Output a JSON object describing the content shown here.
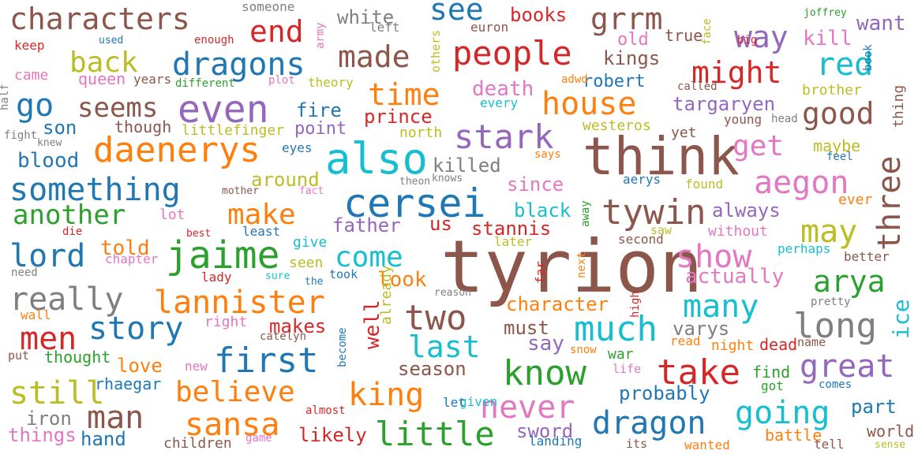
{
  "palette": {
    "blue": "#1f77b4",
    "orange": "#ff7f0e",
    "green": "#2ca02c",
    "red": "#d62728",
    "purple": "#9467bd",
    "brown": "#8c564b",
    "pink": "#e377c2",
    "gray": "#7f7f7f",
    "olive": "#bcbd22",
    "cyan": "#17becf"
  },
  "words": [
    {
      "text": "tyrion",
      "color": "brown"
    },
    {
      "text": "think",
      "color": "brown"
    },
    {
      "text": "also",
      "color": "cyan"
    },
    {
      "text": "cersei",
      "color": "blue"
    },
    {
      "text": "jaime",
      "color": "green"
    },
    {
      "text": "even",
      "color": "purple"
    },
    {
      "text": "daenerys",
      "color": "orange"
    },
    {
      "text": "something",
      "color": "blue"
    },
    {
      "text": "dragons",
      "color": "blue"
    },
    {
      "text": "characters",
      "color": "brown"
    },
    {
      "text": "people",
      "color": "red"
    },
    {
      "text": "lannister",
      "color": "orange"
    },
    {
      "text": "first",
      "color": "blue"
    },
    {
      "text": "know",
      "color": "green"
    },
    {
      "text": "stark",
      "color": "purple"
    },
    {
      "text": "house",
      "color": "orange"
    },
    {
      "text": "might",
      "color": "red"
    },
    {
      "text": "three",
      "color": "brown"
    },
    {
      "text": "way",
      "color": "purple"
    },
    {
      "text": "grrm",
      "color": "brown"
    },
    {
      "text": "see",
      "color": "blue"
    },
    {
      "text": "made",
      "color": "brown"
    },
    {
      "text": "end",
      "color": "red"
    },
    {
      "text": "back",
      "color": "olive"
    },
    {
      "text": "red",
      "color": "cyan"
    },
    {
      "text": "go",
      "color": "blue"
    },
    {
      "text": "seems",
      "color": "brown"
    },
    {
      "text": "time",
      "color": "orange"
    },
    {
      "text": "good",
      "color": "brown"
    },
    {
      "text": "get",
      "color": "pink"
    },
    {
      "text": "aegon",
      "color": "pink"
    },
    {
      "text": "another",
      "color": "green"
    },
    {
      "text": "make",
      "color": "orange"
    },
    {
      "text": "tywin",
      "color": "brown"
    },
    {
      "text": "lord",
      "color": "blue"
    },
    {
      "text": "come",
      "color": "cyan"
    },
    {
      "text": "show",
      "color": "pink"
    },
    {
      "text": "may",
      "color": "olive"
    },
    {
      "text": "arya",
      "color": "green"
    },
    {
      "text": "really",
      "color": "gray"
    },
    {
      "text": "many",
      "color": "cyan"
    },
    {
      "text": "long",
      "color": "gray"
    },
    {
      "text": "story",
      "color": "blue"
    },
    {
      "text": "men",
      "color": "red"
    },
    {
      "text": "two",
      "color": "brown"
    },
    {
      "text": "much",
      "color": "cyan"
    },
    {
      "text": "last",
      "color": "cyan"
    },
    {
      "text": "take",
      "color": "red"
    },
    {
      "text": "great",
      "color": "purple"
    },
    {
      "text": "still",
      "color": "olive"
    },
    {
      "text": "man",
      "color": "brown"
    },
    {
      "text": "believe",
      "color": "orange"
    },
    {
      "text": "king",
      "color": "orange"
    },
    {
      "text": "never",
      "color": "pink"
    },
    {
      "text": "going",
      "color": "cyan"
    },
    {
      "text": "sansa",
      "color": "orange"
    },
    {
      "text": "little",
      "color": "green"
    },
    {
      "text": "dragon",
      "color": "blue"
    },
    {
      "text": "ice",
      "color": "cyan"
    },
    {
      "text": "white",
      "color": "gray"
    },
    {
      "text": "books",
      "color": "red"
    },
    {
      "text": "kings",
      "color": "brown"
    },
    {
      "text": "old",
      "color": "pink"
    },
    {
      "text": "kill",
      "color": "pink"
    },
    {
      "text": "want",
      "color": "purple"
    },
    {
      "text": "robert",
      "color": "blue"
    },
    {
      "text": "death",
      "color": "pink"
    },
    {
      "text": "fire",
      "color": "blue"
    },
    {
      "text": "prince",
      "color": "red"
    },
    {
      "text": "targaryen",
      "color": "purple"
    },
    {
      "text": "son",
      "color": "blue"
    },
    {
      "text": "point",
      "color": "purple"
    },
    {
      "text": "though",
      "color": "brown"
    },
    {
      "text": "westeros",
      "color": "olive"
    },
    {
      "text": "brother",
      "color": "olive"
    },
    {
      "text": "blood",
      "color": "blue"
    },
    {
      "text": "killed",
      "color": "gray"
    },
    {
      "text": "maybe",
      "color": "olive"
    },
    {
      "text": "around",
      "color": "olive"
    },
    {
      "text": "since",
      "color": "pink"
    },
    {
      "text": "black",
      "color": "cyan"
    },
    {
      "text": "always",
      "color": "purple"
    },
    {
      "text": "father",
      "color": "purple"
    },
    {
      "text": "us",
      "color": "red"
    },
    {
      "text": "stannis",
      "color": "red"
    },
    {
      "text": "told",
      "color": "orange"
    },
    {
      "text": "actually",
      "color": "pink"
    },
    {
      "text": "look",
      "color": "orange"
    },
    {
      "text": "character",
      "color": "orange"
    },
    {
      "text": "must",
      "color": "brown"
    },
    {
      "text": "varys",
      "color": "gray"
    },
    {
      "text": "well",
      "color": "red"
    },
    {
      "text": "say",
      "color": "purple"
    },
    {
      "text": "makes",
      "color": "red"
    },
    {
      "text": "season",
      "color": "brown"
    },
    {
      "text": "love",
      "color": "orange"
    },
    {
      "text": "thought",
      "color": "green"
    },
    {
      "text": "probably",
      "color": "blue"
    },
    {
      "text": "part",
      "color": "blue"
    },
    {
      "text": "find",
      "color": "green"
    },
    {
      "text": "night",
      "color": "orange"
    },
    {
      "text": "dead",
      "color": "red"
    },
    {
      "text": "iron",
      "color": "gray"
    },
    {
      "text": "things",
      "color": "pink"
    },
    {
      "text": "hand",
      "color": "blue"
    },
    {
      "text": "likely",
      "color": "red"
    },
    {
      "text": "sword",
      "color": "purple"
    },
    {
      "text": "battle",
      "color": "orange"
    },
    {
      "text": "world",
      "color": "brown"
    },
    {
      "text": "rhaegar",
      "color": "blue"
    },
    {
      "text": "children",
      "color": "brown"
    },
    {
      "text": "someone",
      "color": "gray"
    },
    {
      "text": "joffrey",
      "color": "green"
    },
    {
      "text": "keep",
      "color": "red"
    },
    {
      "text": "used",
      "color": "blue"
    },
    {
      "text": "enough",
      "color": "red"
    },
    {
      "text": "army",
      "color": "pink"
    },
    {
      "text": "left",
      "color": "gray"
    },
    {
      "text": "euron",
      "color": "brown"
    },
    {
      "text": "face",
      "color": "olive"
    },
    {
      "text": "big",
      "color": "red"
    },
    {
      "text": "book",
      "color": "blue"
    },
    {
      "text": "true",
      "color": "brown"
    },
    {
      "text": "came",
      "color": "pink"
    },
    {
      "text": "queen",
      "color": "pink"
    },
    {
      "text": "years",
      "color": "brown"
    },
    {
      "text": "different",
      "color": "green"
    },
    {
      "text": "plot",
      "color": "pink"
    },
    {
      "text": "theory",
      "color": "olive"
    },
    {
      "text": "others",
      "color": "olive"
    },
    {
      "text": "adwd",
      "color": "orange"
    },
    {
      "text": "called",
      "color": "brown"
    },
    {
      "text": "half",
      "color": "gray"
    },
    {
      "text": "every",
      "color": "cyan"
    },
    {
      "text": "north",
      "color": "olive"
    },
    {
      "text": "thing",
      "color": "brown"
    },
    {
      "text": "young",
      "color": "brown"
    },
    {
      "text": "head",
      "color": "gray"
    },
    {
      "text": "fight",
      "color": "gray"
    },
    {
      "text": "knew",
      "color": "gray"
    },
    {
      "text": "littlefinger",
      "color": "olive"
    },
    {
      "text": "yet",
      "color": "brown"
    },
    {
      "text": "eyes",
      "color": "blue"
    },
    {
      "text": "says",
      "color": "orange"
    },
    {
      "text": "feel",
      "color": "blue"
    },
    {
      "text": "theon",
      "color": "gray"
    },
    {
      "text": "knows",
      "color": "gray"
    },
    {
      "text": "aerys",
      "color": "blue"
    },
    {
      "text": "found",
      "color": "olive"
    },
    {
      "text": "mother",
      "color": "brown"
    },
    {
      "text": "fact",
      "color": "pink"
    },
    {
      "text": "lot",
      "color": "pink"
    },
    {
      "text": "ever",
      "color": "orange"
    },
    {
      "text": "die",
      "color": "red"
    },
    {
      "text": "best",
      "color": "red"
    },
    {
      "text": "least",
      "color": "blue"
    },
    {
      "text": "give",
      "color": "cyan"
    },
    {
      "text": "later",
      "color": "olive"
    },
    {
      "text": "away",
      "color": "green"
    },
    {
      "text": "saw",
      "color": "olive"
    },
    {
      "text": "without",
      "color": "pink"
    },
    {
      "text": "second",
      "color": "brown"
    },
    {
      "text": "chapter",
      "color": "pink"
    },
    {
      "text": "seen",
      "color": "olive"
    },
    {
      "text": "perhaps",
      "color": "cyan"
    },
    {
      "text": "need",
      "color": "gray"
    },
    {
      "text": "sure",
      "color": "cyan"
    },
    {
      "text": "took",
      "color": "blue"
    },
    {
      "text": "better",
      "color": "brown"
    },
    {
      "text": "lady",
      "color": "red"
    },
    {
      "text": "the",
      "color": "blue"
    },
    {
      "text": "far",
      "color": "red"
    },
    {
      "text": "next",
      "color": "orange"
    },
    {
      "text": "reason",
      "color": "gray"
    },
    {
      "text": "pretty",
      "color": "gray"
    },
    {
      "text": "wall",
      "color": "orange"
    },
    {
      "text": "right",
      "color": "pink"
    },
    {
      "text": "already",
      "color": "olive"
    },
    {
      "text": "high",
      "color": "red"
    },
    {
      "text": "catelyn",
      "color": "brown"
    },
    {
      "text": "become",
      "color": "blue"
    },
    {
      "text": "read",
      "color": "orange"
    },
    {
      "text": "name",
      "color": "brown"
    },
    {
      "text": "put",
      "color": "brown"
    },
    {
      "text": "new",
      "color": "pink"
    },
    {
      "text": "snow",
      "color": "orange"
    },
    {
      "text": "war",
      "color": "green"
    },
    {
      "text": "life",
      "color": "pink"
    },
    {
      "text": "got",
      "color": "green"
    },
    {
      "text": "comes",
      "color": "blue"
    },
    {
      "text": "given",
      "color": "cyan"
    },
    {
      "text": "almost",
      "color": "red"
    },
    {
      "text": "let",
      "color": "blue"
    },
    {
      "text": "game",
      "color": "pink"
    },
    {
      "text": "landing",
      "color": "blue"
    },
    {
      "text": "its",
      "color": "brown"
    },
    {
      "text": "wanted",
      "color": "orange"
    },
    {
      "text": "tell",
      "color": "brown"
    },
    {
      "text": "sense",
      "color": "olive"
    }
  ]
}
